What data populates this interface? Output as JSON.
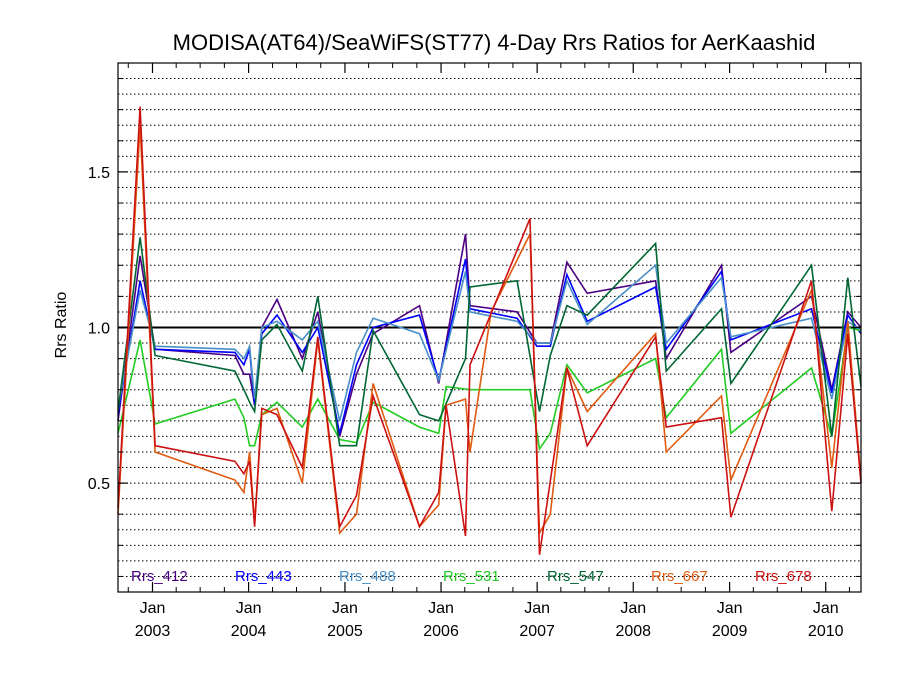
{
  "chart_data": {
    "type": "line",
    "title": "MODISA(AT64)/SeaWiFS(ST77) 4-Day Rrs Ratios for AerKaashid",
    "xlabel": "",
    "ylabel": "Rrs Ratio",
    "xlim": [
      "2002-08-23",
      "2010-05-15"
    ],
    "ylim": [
      0.15,
      1.85
    ],
    "y_ticks": [
      {
        "value": 0.5,
        "label": "0.5"
      },
      {
        "value": 1.0,
        "label": "1.0"
      },
      {
        "value": 1.5,
        "label": "1.5"
      }
    ],
    "x_ticks": [
      {
        "date": "2003-01-01",
        "month": "Jan",
        "year": "2003"
      },
      {
        "date": "2004-01-01",
        "month": "Jan",
        "year": "2004"
      },
      {
        "date": "2005-01-01",
        "month": "Jan",
        "year": "2005"
      },
      {
        "date": "2006-01-01",
        "month": "Jan",
        "year": "2006"
      },
      {
        "date": "2007-01-01",
        "month": "Jan",
        "year": "2007"
      },
      {
        "date": "2008-01-01",
        "month": "Jan",
        "year": "2008"
      },
      {
        "date": "2009-01-01",
        "month": "Jan",
        "year": "2009"
      },
      {
        "date": "2010-01-01",
        "month": "Jan",
        "year": "2010"
      }
    ],
    "reference_line": 1.0,
    "grid": "dotted horizontal",
    "legend_position": "bottom",
    "series": [
      {
        "name": "Rrs_412",
        "color": "#4B0082",
        "points": [
          [
            "2002-08-23",
            0.7
          ],
          [
            "2002-11-15",
            1.23
          ],
          [
            "2003-01-11",
            0.93
          ],
          [
            "2003-11-10",
            0.91
          ],
          [
            "2003-12-14",
            0.85
          ],
          [
            "2004-01-05",
            0.85
          ],
          [
            "2004-01-24",
            0.75
          ],
          [
            "2004-02-20",
            1.0
          ],
          [
            "2004-04-18",
            1.09
          ],
          [
            "2004-07-23",
            0.9
          ],
          [
            "2004-09-20",
            1.05
          ],
          [
            "2004-12-12",
            0.65
          ],
          [
            "2005-02-14",
            0.85
          ],
          [
            "2005-04-18",
            0.98
          ],
          [
            "2005-10-11",
            1.07
          ],
          [
            "2005-12-23",
            0.82
          ],
          [
            "2006-04-04",
            1.3
          ],
          [
            "2006-04-21",
            1.07
          ],
          [
            "2006-10-17",
            1.05
          ],
          [
            "2006-12-31",
            0.95
          ],
          [
            "2007-02-20",
            0.95
          ],
          [
            "2007-04-24",
            1.21
          ],
          [
            "2007-07-10",
            1.11
          ],
          [
            "2008-03-26",
            1.15
          ],
          [
            "2008-05-05",
            0.9
          ],
          [
            "2008-12-01",
            1.2
          ],
          [
            "2009-01-06",
            0.92
          ],
          [
            "2009-11-08",
            1.1
          ],
          [
            "2010-01-24",
            0.8
          ],
          [
            "2010-03-26",
            1.05
          ],
          [
            "2010-05-15",
            1.0
          ]
        ]
      },
      {
        "name": "Rrs_443",
        "color": "#0000FF",
        "points": [
          [
            "2002-08-23",
            0.72
          ],
          [
            "2002-11-15",
            1.15
          ],
          [
            "2003-01-11",
            0.93
          ],
          [
            "2003-11-10",
            0.92
          ],
          [
            "2003-12-14",
            0.88
          ],
          [
            "2004-01-05",
            0.93
          ],
          [
            "2004-01-24",
            0.75
          ],
          [
            "2004-02-20",
            0.98
          ],
          [
            "2004-04-18",
            1.04
          ],
          [
            "2004-07-23",
            0.92
          ],
          [
            "2004-09-20",
            1.0
          ],
          [
            "2004-12-12",
            0.66
          ],
          [
            "2005-02-14",
            0.88
          ],
          [
            "2005-04-18",
            1.0
          ],
          [
            "2005-10-11",
            1.04
          ],
          [
            "2005-12-23",
            0.83
          ],
          [
            "2006-04-04",
            1.22
          ],
          [
            "2006-04-21",
            1.06
          ],
          [
            "2006-10-17",
            1.03
          ],
          [
            "2006-12-31",
            0.94
          ],
          [
            "2007-02-20",
            0.94
          ],
          [
            "2007-04-24",
            1.17
          ],
          [
            "2007-07-10",
            1.02
          ],
          [
            "2008-03-26",
            1.13
          ],
          [
            "2008-05-05",
            0.93
          ],
          [
            "2008-12-01",
            1.18
          ],
          [
            "2009-01-06",
            0.96
          ],
          [
            "2009-11-08",
            1.06
          ],
          [
            "2010-01-24",
            0.79
          ],
          [
            "2010-03-26",
            1.04
          ],
          [
            "2010-05-15",
            0.98
          ]
        ]
      },
      {
        "name": "Rrs_488",
        "color": "#4A90C8",
        "points": [
          [
            "2002-08-23",
            0.74
          ],
          [
            "2002-11-15",
            1.12
          ],
          [
            "2003-01-11",
            0.94
          ],
          [
            "2003-11-10",
            0.93
          ],
          [
            "2003-12-14",
            0.9
          ],
          [
            "2004-01-05",
            0.94
          ],
          [
            "2004-01-24",
            0.77
          ],
          [
            "2004-02-20",
            1.0
          ],
          [
            "2004-04-18",
            1.02
          ],
          [
            "2004-07-23",
            0.96
          ],
          [
            "2004-09-20",
            1.02
          ],
          [
            "2004-12-12",
            0.7
          ],
          [
            "2005-02-14",
            0.92
          ],
          [
            "2005-04-18",
            1.03
          ],
          [
            "2005-10-11",
            0.98
          ],
          [
            "2005-12-23",
            0.83
          ],
          [
            "2006-04-04",
            1.18
          ],
          [
            "2006-04-21",
            1.05
          ],
          [
            "2006-10-17",
            1.02
          ],
          [
            "2006-12-31",
            0.95
          ],
          [
            "2007-02-20",
            0.95
          ],
          [
            "2007-04-24",
            1.15
          ],
          [
            "2007-07-10",
            1.01
          ],
          [
            "2008-03-26",
            1.2
          ],
          [
            "2008-05-05",
            0.95
          ],
          [
            "2008-12-01",
            1.16
          ],
          [
            "2009-01-06",
            0.97
          ],
          [
            "2009-11-08",
            1.03
          ],
          [
            "2010-01-24",
            0.77
          ],
          [
            "2010-03-26",
            1.02
          ],
          [
            "2010-05-15",
            0.99
          ]
        ]
      },
      {
        "name": "Rrs_531",
        "color": "#22CC22",
        "points": [
          [
            "2002-08-23",
            0.66
          ],
          [
            "2002-11-15",
            0.96
          ],
          [
            "2003-01-11",
            0.69
          ],
          [
            "2003-11-10",
            0.77
          ],
          [
            "2003-12-14",
            0.71
          ],
          [
            "2004-01-05",
            0.62
          ],
          [
            "2004-01-24",
            0.62
          ],
          [
            "2004-02-20",
            0.72
          ],
          [
            "2004-04-18",
            0.76
          ],
          [
            "2004-07-23",
            0.68
          ],
          [
            "2004-09-20",
            0.77
          ],
          [
            "2004-12-12",
            0.64
          ],
          [
            "2005-02-14",
            0.63
          ],
          [
            "2005-04-18",
            0.76
          ],
          [
            "2005-10-11",
            0.68
          ],
          [
            "2005-12-23",
            0.66
          ],
          [
            "2006-01-20",
            0.81
          ],
          [
            "2006-04-21",
            0.8
          ],
          [
            "2006-12-05",
            0.8
          ],
          [
            "2007-01-10",
            0.61
          ],
          [
            "2007-02-20",
            0.66
          ],
          [
            "2007-04-24",
            0.88
          ],
          [
            "2007-07-10",
            0.79
          ],
          [
            "2008-03-26",
            0.9
          ],
          [
            "2008-05-05",
            0.71
          ],
          [
            "2008-12-01",
            0.93
          ],
          [
            "2009-01-06",
            0.66
          ],
          [
            "2009-11-08",
            0.87
          ],
          [
            "2010-01-24",
            0.65
          ],
          [
            "2010-03-26",
            1.0
          ],
          [
            "2010-05-15",
            0.99
          ]
        ]
      },
      {
        "name": "Rrs_547",
        "color": "#006633",
        "points": [
          [
            "2002-08-23",
            0.73
          ],
          [
            "2002-11-15",
            1.29
          ],
          [
            "2003-01-11",
            0.91
          ],
          [
            "2003-11-10",
            0.86
          ],
          [
            "2003-12-14",
            0.8
          ],
          [
            "2004-01-05",
            0.76
          ],
          [
            "2004-01-24",
            0.73
          ],
          [
            "2004-02-20",
            0.96
          ],
          [
            "2004-04-18",
            1.01
          ],
          [
            "2004-07-23",
            0.86
          ],
          [
            "2004-09-20",
            1.1
          ],
          [
            "2004-12-12",
            0.62
          ],
          [
            "2005-02-14",
            0.62
          ],
          [
            "2005-04-18",
            0.99
          ],
          [
            "2005-10-11",
            0.72
          ],
          [
            "2005-12-23",
            0.7
          ],
          [
            "2006-04-04",
            0.9
          ],
          [
            "2006-04-21",
            1.13
          ],
          [
            "2006-10-17",
            1.15
          ],
          [
            "2007-01-10",
            0.73
          ],
          [
            "2007-02-20",
            0.91
          ],
          [
            "2007-04-24",
            1.07
          ],
          [
            "2007-07-10",
            1.04
          ],
          [
            "2008-03-26",
            1.27
          ],
          [
            "2008-05-05",
            0.86
          ],
          [
            "2008-12-01",
            1.06
          ],
          [
            "2009-01-06",
            0.82
          ],
          [
            "2009-11-08",
            1.2
          ],
          [
            "2010-01-24",
            0.65
          ],
          [
            "2010-03-26",
            1.16
          ],
          [
            "2010-05-15",
            0.81
          ]
        ]
      },
      {
        "name": "Rrs_667",
        "color": "#E05A10",
        "points": [
          [
            "2002-08-23",
            0.4
          ],
          [
            "2002-11-15",
            1.65
          ],
          [
            "2003-01-11",
            0.6
          ],
          [
            "2003-11-10",
            0.51
          ],
          [
            "2003-12-14",
            0.47
          ],
          [
            "2004-01-05",
            0.6
          ],
          [
            "2004-01-24",
            0.37
          ],
          [
            "2004-02-20",
            0.72
          ],
          [
            "2004-04-18",
            0.74
          ],
          [
            "2004-07-23",
            0.5
          ],
          [
            "2004-09-20",
            0.96
          ],
          [
            "2004-12-12",
            0.34
          ],
          [
            "2005-02-14",
            0.4
          ],
          [
            "2005-04-18",
            0.82
          ],
          [
            "2005-10-11",
            0.36
          ],
          [
            "2005-12-23",
            0.43
          ],
          [
            "2006-01-20",
            0.75
          ],
          [
            "2006-04-04",
            0.77
          ],
          [
            "2006-04-21",
            0.6
          ],
          [
            "2006-07-10",
            1.05
          ],
          [
            "2006-12-05",
            1.3
          ],
          [
            "2007-01-10",
            0.34
          ],
          [
            "2007-02-20",
            0.4
          ],
          [
            "2007-04-24",
            0.87
          ],
          [
            "2007-07-10",
            0.73
          ],
          [
            "2008-03-26",
            0.98
          ],
          [
            "2008-05-05",
            0.6
          ],
          [
            "2008-12-01",
            0.78
          ],
          [
            "2009-01-06",
            0.51
          ],
          [
            "2009-11-08",
            1.12
          ],
          [
            "2010-01-24",
            0.55
          ],
          [
            "2010-03-26",
            1.02
          ],
          [
            "2010-05-15",
            0.51
          ]
        ]
      },
      {
        "name": "Rrs_678",
        "color": "#CC1111",
        "points": [
          [
            "2002-08-23",
            0.42
          ],
          [
            "2002-11-15",
            1.71
          ],
          [
            "2003-01-11",
            0.62
          ],
          [
            "2003-11-10",
            0.57
          ],
          [
            "2003-12-14",
            0.53
          ],
          [
            "2004-01-05",
            0.57
          ],
          [
            "2004-01-24",
            0.36
          ],
          [
            "2004-02-20",
            0.74
          ],
          [
            "2004-04-18",
            0.72
          ],
          [
            "2004-07-23",
            0.55
          ],
          [
            "2004-09-20",
            0.97
          ],
          [
            "2004-12-12",
            0.36
          ],
          [
            "2005-02-14",
            0.46
          ],
          [
            "2005-04-18",
            0.78
          ],
          [
            "2005-10-11",
            0.36
          ],
          [
            "2005-12-23",
            0.47
          ],
          [
            "2006-01-20",
            0.75
          ],
          [
            "2006-04-04",
            0.33
          ],
          [
            "2006-04-21",
            0.88
          ],
          [
            "2006-12-05",
            1.35
          ],
          [
            "2007-01-10",
            0.27
          ],
          [
            "2007-04-24",
            0.87
          ],
          [
            "2007-07-10",
            0.62
          ],
          [
            "2008-03-26",
            0.97
          ],
          [
            "2008-05-05",
            0.68
          ],
          [
            "2008-12-01",
            0.71
          ],
          [
            "2009-01-06",
            0.39
          ],
          [
            "2009-11-08",
            1.15
          ],
          [
            "2010-01-24",
            0.41
          ],
          [
            "2010-03-26",
            0.98
          ],
          [
            "2010-05-15",
            0.5
          ]
        ]
      }
    ]
  }
}
